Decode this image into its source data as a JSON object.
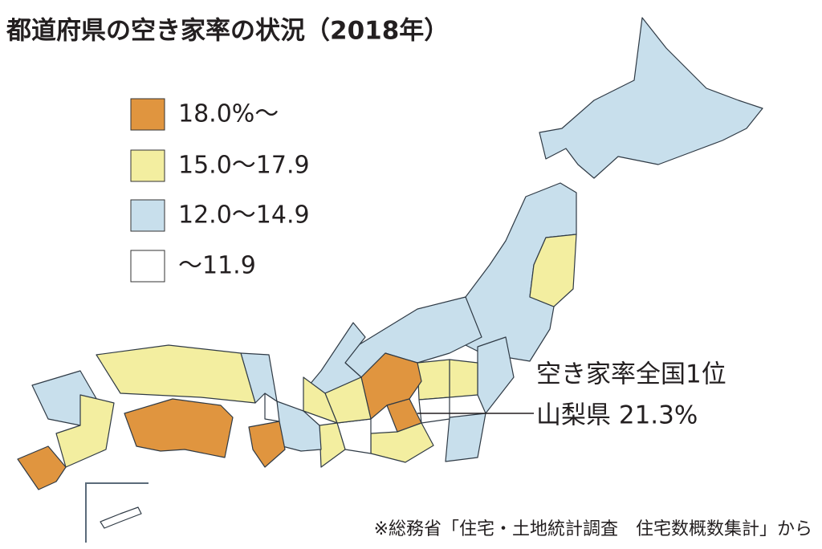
{
  "title": "都道府県の空き家率の状況（2018年）",
  "legend": [
    {
      "label": "18.0%～",
      "color": "#e0953f"
    },
    {
      "label": "15.0～17.9",
      "color": "#f3eea0"
    },
    {
      "label": "12.0～14.9",
      "color": "#c8dfec"
    },
    {
      "label": "～11.9",
      "color": "#ffffff"
    }
  ],
  "annotation": {
    "lines": [
      "空き家率全国1位",
      "山梨県 21.3%"
    ]
  },
  "source": "※総務省「住宅・土地統計調査　住宅数概数集計」から"
}
